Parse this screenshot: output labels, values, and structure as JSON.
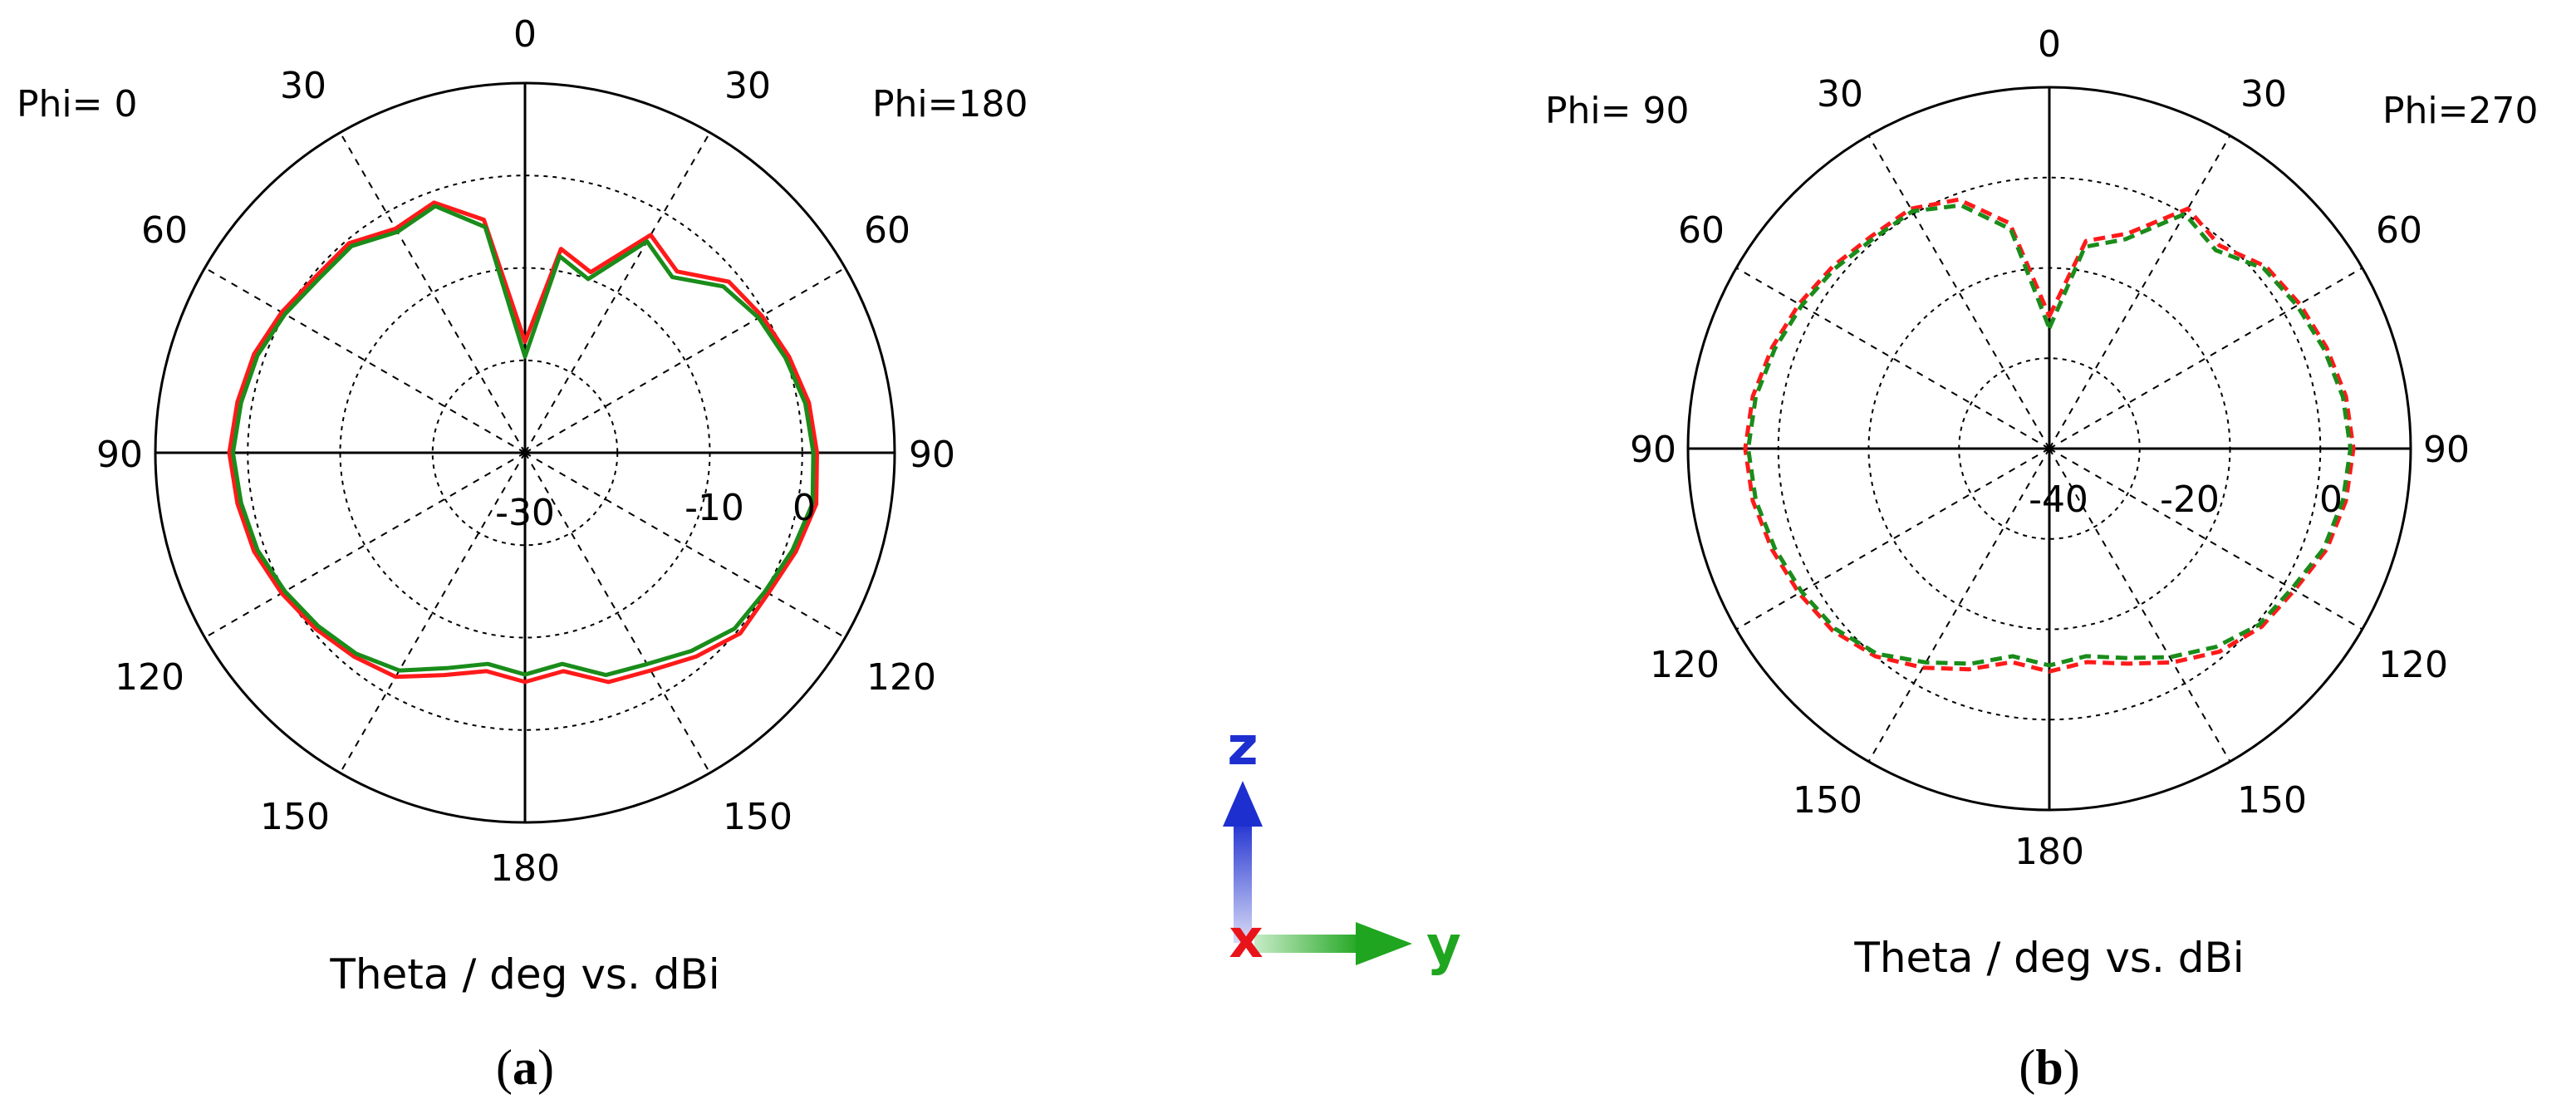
{
  "colors": {
    "red": "#ff1a1a",
    "green": "#1a8c1a",
    "grid": "#000000",
    "triad_z": "#1e2fd0",
    "triad_y": "#1fa51f",
    "triad_x": "#e8141a"
  },
  "triad": {
    "z_label": "z",
    "y_label": "y",
    "x_label": "x"
  },
  "captions": {
    "a": "a",
    "b": "b"
  },
  "chart_data": [
    {
      "type": "polar",
      "panel": "a",
      "xlabel": "Theta / deg vs. dBi",
      "left_label": "Phi=  0",
      "right_label": "Phi=180",
      "angle_labels": [
        "0",
        "30",
        "30",
        "60",
        "60",
        "90",
        "90",
        "120",
        "120",
        "150",
        "150",
        "180"
      ],
      "radial_labels": [
        "-30",
        "-10",
        "0"
      ],
      "r_range": [
        -40,
        10
      ],
      "line_style": "solid",
      "series": [
        {
          "color": "red",
          "theta": [
            0,
            10,
            20,
            30,
            40,
            50,
            60,
            70,
            80,
            90,
            100,
            110,
            120,
            130,
            140,
            150,
            160,
            170,
            180,
            190,
            200,
            210,
            220,
            230,
            240,
            250,
            260,
            270,
            280,
            290,
            300,
            310,
            320,
            330,
            340,
            350
          ],
          "values": [
            -25,
            -12,
            -14,
            -6,
            -8,
            -4,
            -3,
            -2,
            -1,
            -0.5,
            0,
            -1,
            -2,
            -2,
            -4,
            -6,
            -7,
            -10,
            -9,
            -10,
            -8,
            -5,
            -4,
            -3,
            -2,
            -1,
            -0.5,
            0,
            -0.5,
            -1,
            -2,
            -3,
            -3,
            -5,
            -4,
            -8
          ]
        },
        {
          "color": "green",
          "theta": [
            0,
            10,
            20,
            30,
            40,
            50,
            60,
            70,
            80,
            90,
            100,
            110,
            120,
            130,
            140,
            150,
            160,
            170,
            180,
            190,
            200,
            210,
            220,
            230,
            240,
            250,
            260,
            270,
            280,
            290,
            300,
            310,
            320,
            330,
            340,
            350
          ],
          "values": [
            -27,
            -13,
            -15,
            -7,
            -9,
            -5,
            -3.5,
            -2.5,
            -1.5,
            -1,
            -0.5,
            -1.5,
            -2.5,
            -3,
            -5,
            -7,
            -8,
            -11,
            -10,
            -11,
            -9,
            -6,
            -4.5,
            -3.5,
            -2.5,
            -1.5,
            -1,
            -0.5,
            -1,
            -1.5,
            -2.5,
            -3.5,
            -3.5,
            -5.5,
            -4.5,
            -9
          ]
        }
      ]
    },
    {
      "type": "polar",
      "panel": "b",
      "xlabel": "Theta / deg vs. dBi",
      "left_label": "Phi= 90",
      "right_label": "Phi=270",
      "angle_labels": [
        "0",
        "30",
        "30",
        "60",
        "60",
        "90",
        "90",
        "120",
        "120",
        "150",
        "150",
        "180"
      ],
      "radial_labels": [
        "-40",
        "-20",
        "0"
      ],
      "r_range": [
        -50,
        10
      ],
      "line_style": "dashed",
      "series": [
        {
          "color": "red",
          "theta": [
            0,
            10,
            20,
            30,
            40,
            50,
            60,
            70,
            80,
            90,
            100,
            110,
            120,
            130,
            140,
            150,
            160,
            170,
            180,
            190,
            200,
            210,
            220,
            230,
            240,
            250,
            260,
            270,
            280,
            290,
            300,
            310,
            320,
            330,
            340,
            350
          ],
          "values": [
            -28,
            -15,
            -12,
            -4,
            -6,
            -3,
            -2,
            -1,
            0,
            0.5,
            0,
            -1,
            -3,
            -4,
            -6,
            -9,
            -12,
            -14,
            -13,
            -14,
            -11,
            -8,
            -5,
            -3,
            -2,
            -1,
            0,
            0.5,
            0,
            -1,
            -2,
            -3,
            -4,
            -4,
            -6,
            -12
          ]
        },
        {
          "color": "green",
          "theta": [
            0,
            10,
            20,
            30,
            40,
            50,
            60,
            70,
            80,
            90,
            100,
            110,
            120,
            130,
            140,
            150,
            160,
            170,
            180,
            190,
            200,
            210,
            220,
            230,
            240,
            250,
            260,
            270,
            280,
            290,
            300,
            310,
            320,
            330,
            340,
            350
          ],
          "values": [
            -30,
            -16,
            -13,
            -5,
            -7,
            -3.5,
            -2.5,
            -1.5,
            -0.5,
            0,
            -0.5,
            -1.5,
            -3.5,
            -4.5,
            -7,
            -10,
            -13,
            -15,
            -14,
            -15,
            -12,
            -9,
            -5.5,
            -3.5,
            -2.5,
            -1.5,
            -0.5,
            0,
            -0.5,
            -1.5,
            -2.5,
            -3.5,
            -4.5,
            -4.5,
            -7,
            -13
          ]
        }
      ]
    }
  ]
}
